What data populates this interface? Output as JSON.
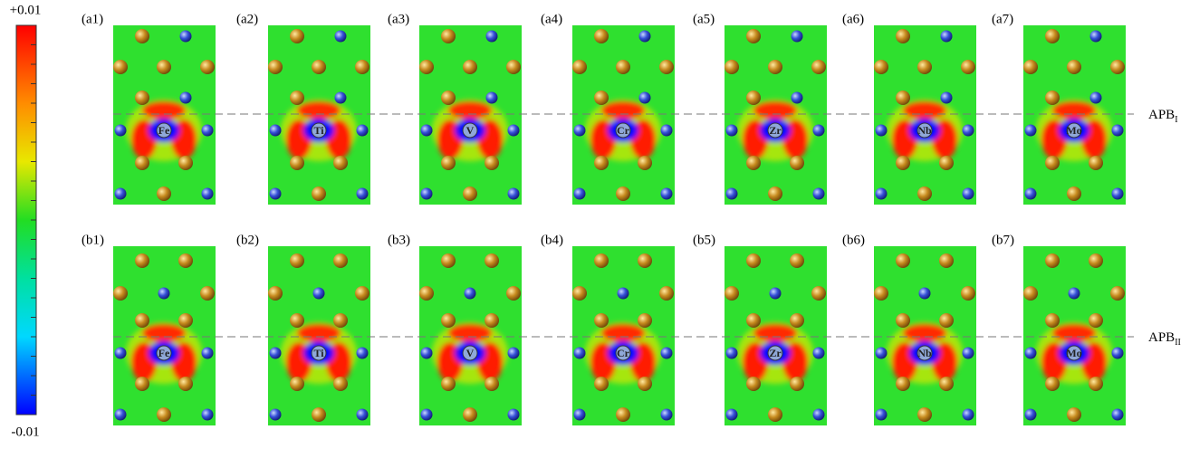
{
  "colorbar": {
    "max": "+0.01",
    "min": "-0.01"
  },
  "rows": [
    {
      "boundary": {
        "name": "APB",
        "sub": "I"
      },
      "panels": [
        {
          "tag": "(a1)",
          "element": "Fe"
        },
        {
          "tag": "(a2)",
          "element": "Ti"
        },
        {
          "tag": "(a3)",
          "element": "V"
        },
        {
          "tag": "(a4)",
          "element": "Cr"
        },
        {
          "tag": "(a5)",
          "element": "Zr"
        },
        {
          "tag": "(a6)",
          "element": "Nb"
        },
        {
          "tag": "(a7)",
          "element": "Mo"
        }
      ]
    },
    {
      "boundary": {
        "name": "APB",
        "sub": "II"
      },
      "panels": [
        {
          "tag": "(b1)",
          "element": "Fe"
        },
        {
          "tag": "(b2)",
          "element": "Ti"
        },
        {
          "tag": "(b3)",
          "element": "V"
        },
        {
          "tag": "(b4)",
          "element": "Cr"
        },
        {
          "tag": "(b5)",
          "element": "Zr"
        },
        {
          "tag": "(b6)",
          "element": "Nb"
        },
        {
          "tag": "(b7)",
          "element": "Mo"
        }
      ]
    }
  ]
}
